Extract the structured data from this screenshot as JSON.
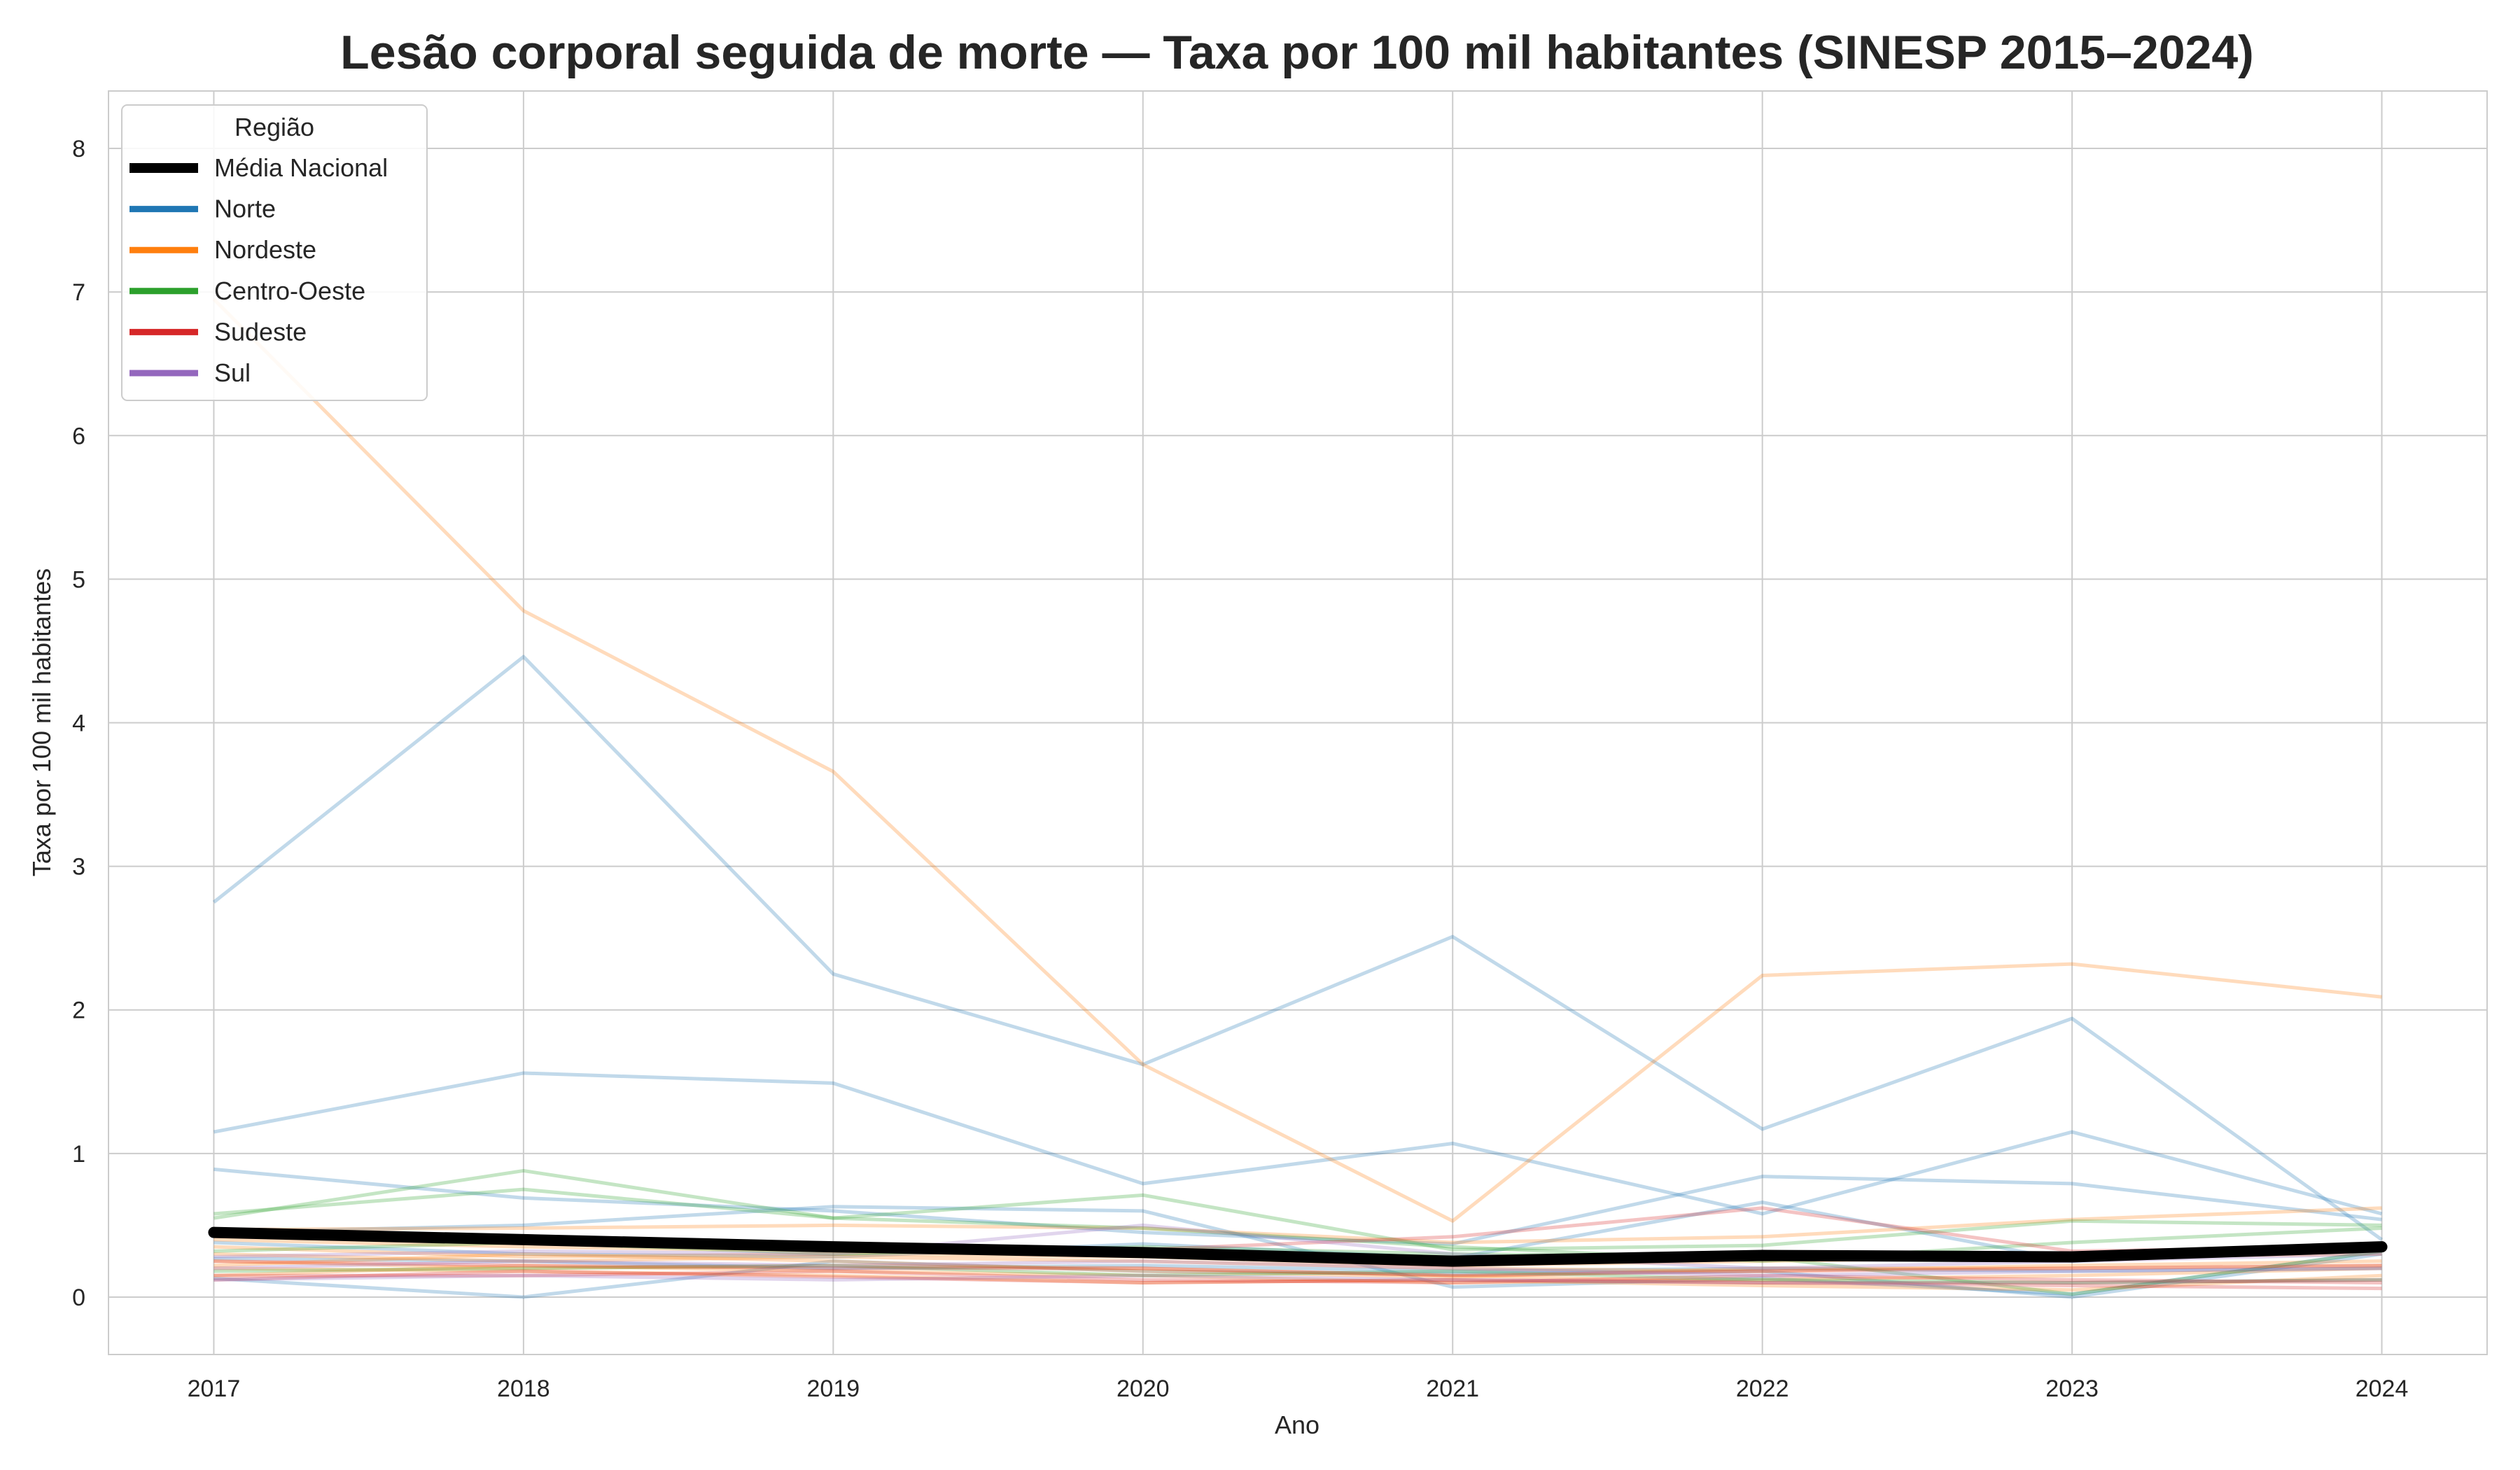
{
  "chart_data": {
    "type": "line",
    "title": "Lesão corporal seguida de morte — Taxa por 100 mil habitantes (SINESP 2015–2024)",
    "xlabel": "Ano",
    "ylabel": "Taxa por 100 mil habitantes",
    "x": [
      2017,
      2018,
      2019,
      2020,
      2021,
      2022,
      2023,
      2024
    ],
    "xlim": [
      2016.66,
      2024.34
    ],
    "ylim": [
      -0.4,
      8.4
    ],
    "yticks": [
      0,
      1,
      2,
      3,
      4,
      5,
      6,
      7,
      8
    ],
    "grid": true,
    "legend": {
      "title": "Região",
      "placement": "top-left",
      "entries": [
        {
          "label": "Média Nacional",
          "color": "#000000"
        },
        {
          "label": "Norte",
          "color": "#1f77b4"
        },
        {
          "label": "Nordeste",
          "color": "#ff7f0e"
        },
        {
          "label": "Centro-Oeste",
          "color": "#2ca02c"
        },
        {
          "label": "Sudeste",
          "color": "#d62728"
        },
        {
          "label": "Sul",
          "color": "#9467bd"
        }
      ]
    },
    "colors": {
      "Norte": "#1f77b4",
      "Nordeste": "#ff7f0e",
      "Centro-Oeste": "#2ca02c",
      "Sudeste": "#d62728",
      "Sul": "#9467bd",
      "Média Nacional": "#000000"
    },
    "series": [
      {
        "region": "Norte",
        "values": [
          2.75,
          4.46,
          2.25,
          1.62,
          2.51,
          1.17,
          1.94,
          0.4
        ]
      },
      {
        "region": "Norte",
        "values": [
          1.15,
          1.56,
          1.49,
          0.79,
          1.07,
          0.58,
          1.15,
          0.58
        ]
      },
      {
        "region": "Norte",
        "values": [
          0.89,
          0.69,
          0.6,
          0.45,
          0.37,
          0.84,
          0.79,
          0.54
        ]
      },
      {
        "region": "Norte",
        "values": [
          0.45,
          0.5,
          0.63,
          0.6,
          0.07,
          0.13,
          0.02,
          0.32
        ]
      },
      {
        "region": "Norte",
        "values": [
          0.38,
          0.3,
          0.28,
          0.37,
          0.27,
          0.66,
          0.25,
          0.35
        ]
      },
      {
        "region": "Norte",
        "values": [
          0.13,
          0.0,
          0.25,
          0.18,
          0.16,
          0.18,
          0.0,
          0.3
        ]
      },
      {
        "region": "Norte",
        "values": [
          0.27,
          0.25,
          0.2,
          0.22,
          0.18,
          0.2,
          0.18,
          0.2
        ]
      },
      {
        "region": "Nordeste",
        "values": [
          6.95,
          4.78,
          3.66,
          1.62,
          0.53,
          2.24,
          2.32,
          2.09
        ]
      },
      {
        "region": "Nordeste",
        "values": [
          0.47,
          0.48,
          0.5,
          0.48,
          0.38,
          0.42,
          0.54,
          0.62
        ]
      },
      {
        "region": "Nordeste",
        "values": [
          0.35,
          0.28,
          0.3,
          0.28,
          0.22,
          0.25,
          0.28,
          0.3
        ]
      },
      {
        "region": "Nordeste",
        "values": [
          0.25,
          0.2,
          0.22,
          0.2,
          0.15,
          0.1,
          0.1,
          0.12
        ]
      },
      {
        "region": "Nordeste",
        "values": [
          0.2,
          0.18,
          0.15,
          0.1,
          0.12,
          0.08,
          0.05,
          0.15
        ]
      },
      {
        "region": "Nordeste",
        "values": [
          0.3,
          0.25,
          0.28,
          0.25,
          0.2,
          0.18,
          0.22,
          0.25
        ]
      },
      {
        "region": "Nordeste",
        "values": [
          0.15,
          0.22,
          0.18,
          0.15,
          0.1,
          0.12,
          0.15,
          0.2
        ]
      },
      {
        "region": "Nordeste",
        "values": [
          0.22,
          0.3,
          0.25,
          0.18,
          0.14,
          0.2,
          0.2,
          0.22
        ]
      },
      {
        "region": "Nordeste",
        "values": [
          0.4,
          0.35,
          0.32,
          0.3,
          0.25,
          0.28,
          0.3,
          0.36
        ]
      },
      {
        "region": "Centro-Oeste",
        "values": [
          0.55,
          0.88,
          0.55,
          0.71,
          0.33,
          0.36,
          0.53,
          0.5
        ]
      },
      {
        "region": "Centro-Oeste",
        "values": [
          0.58,
          0.75,
          0.55,
          0.48,
          0.35,
          0.25,
          0.38,
          0.48
        ]
      },
      {
        "region": "Centro-Oeste",
        "values": [
          0.32,
          0.38,
          0.3,
          0.35,
          0.3,
          0.28,
          0.02,
          0.32
        ]
      },
      {
        "region": "Centro-Oeste",
        "values": [
          0.18,
          0.2,
          0.22,
          0.15,
          0.18,
          0.12,
          0.1,
          0.12
        ]
      },
      {
        "region": "Sudeste",
        "values": [
          0.45,
          0.4,
          0.35,
          0.33,
          0.42,
          0.62,
          0.32,
          0.35
        ]
      },
      {
        "region": "Sudeste",
        "values": [
          0.25,
          0.22,
          0.2,
          0.2,
          0.15,
          0.18,
          0.2,
          0.22
        ]
      },
      {
        "region": "Sudeste",
        "values": [
          0.15,
          0.15,
          0.18,
          0.12,
          0.1,
          0.15,
          0.12,
          0.1
        ]
      },
      {
        "region": "Sudeste",
        "values": [
          0.12,
          0.18,
          0.14,
          0.1,
          0.12,
          0.1,
          0.08,
          0.06
        ]
      },
      {
        "region": "Sul",
        "values": [
          0.28,
          0.32,
          0.3,
          0.5,
          0.3,
          0.2,
          0.25,
          0.3
        ]
      },
      {
        "region": "Sul",
        "values": [
          0.2,
          0.25,
          0.22,
          0.25,
          0.2,
          0.15,
          0.18,
          0.2
        ]
      },
      {
        "region": "Sul",
        "values": [
          0.12,
          0.15,
          0.12,
          0.15,
          0.12,
          0.1,
          0.1,
          0.12
        ]
      }
    ],
    "national_average": {
      "label": "Média Nacional",
      "values": [
        0.45,
        0.4,
        0.35,
        0.31,
        0.25,
        0.29,
        0.28,
        0.35
      ]
    }
  }
}
